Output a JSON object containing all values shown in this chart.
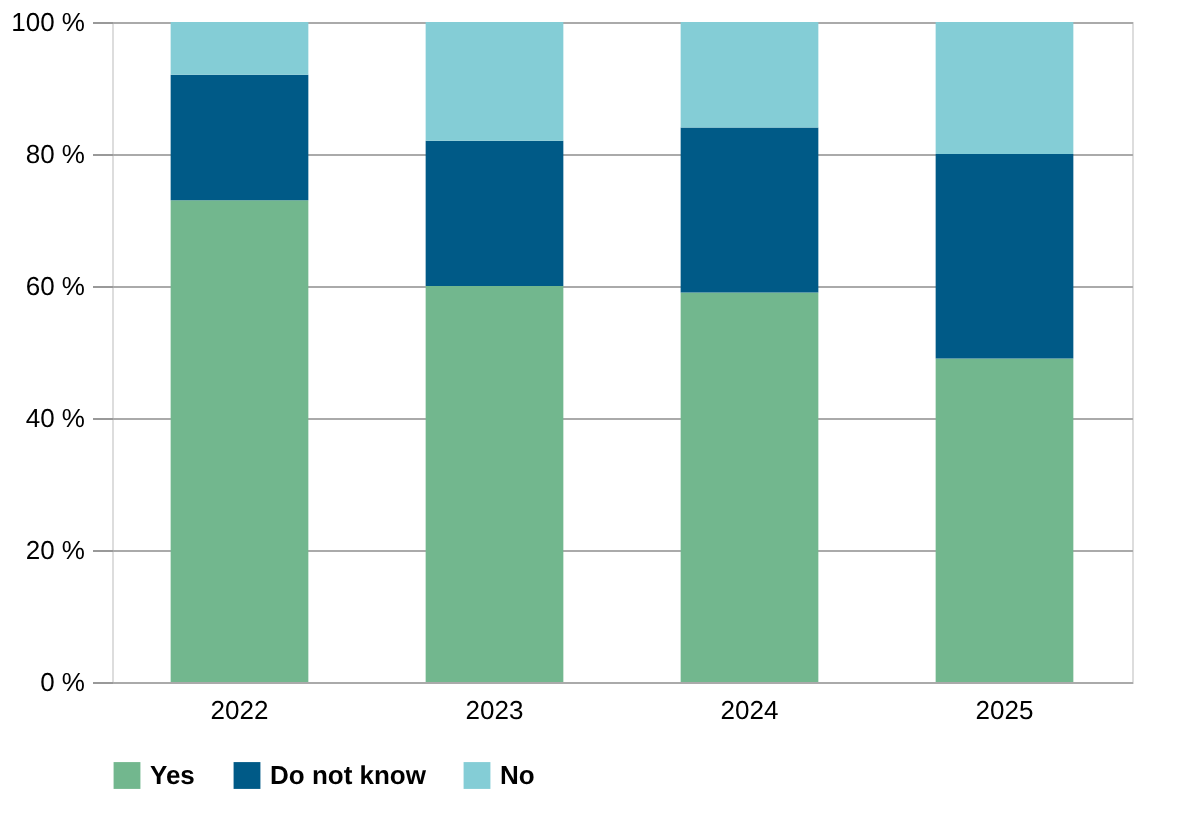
{
  "chart_data": {
    "type": "bar",
    "stacked": true,
    "categories": [
      "2022",
      "2023",
      "2024",
      "2025"
    ],
    "series": [
      {
        "name": "Yes",
        "color": "#72b78e",
        "values": [
          73,
          60,
          59,
          49
        ]
      },
      {
        "name": "Do not know",
        "color": "#005a87",
        "values": [
          19,
          22,
          25,
          31
        ]
      },
      {
        "name": "No",
        "color": "#84cdd6",
        "values": [
          8,
          18,
          16,
          20
        ]
      }
    ],
    "ylim": [
      0,
      100
    ],
    "yticks": [
      {
        "value": 0,
        "label": "0 %"
      },
      {
        "value": 20,
        "label": "20 %"
      },
      {
        "value": 40,
        "label": "40 %"
      },
      {
        "value": 60,
        "label": "60 %"
      },
      {
        "value": 80,
        "label": "80 %"
      },
      {
        "value": 100,
        "label": "100 %"
      }
    ],
    "grid": "y",
    "legend": "bottom"
  }
}
